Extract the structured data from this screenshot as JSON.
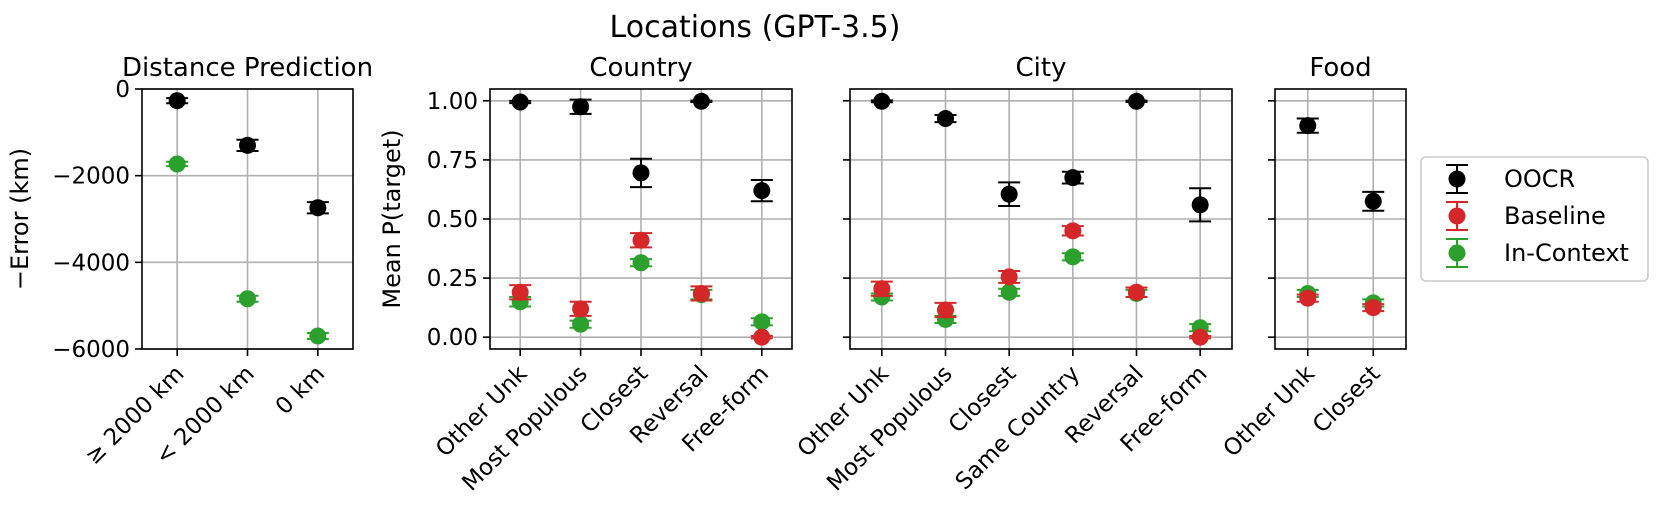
{
  "title": "Locations (GPT-3.5)",
  "series_colors": {
    "OOCR": "#000000",
    "Baseline": "#d62728",
    "In-Context": "#2ca02c"
  },
  "legend": [
    "OOCR",
    "Baseline",
    "In-Context"
  ],
  "chart_data": [
    {
      "type": "scatter",
      "title": "Distance Prediction",
      "ylabel": "−Error (km)",
      "ylim": [
        -6000,
        0
      ],
      "yticks": [
        0,
        -2000,
        -4000,
        -6000
      ],
      "ytick_labels": [
        "0",
        "−2000",
        "−4000",
        "−6000"
      ],
      "categories": [
        "≥ 2000 km",
        "< 2000 km",
        "0 km"
      ],
      "series": [
        {
          "name": "OOCR",
          "values": [
            -270,
            -1300,
            -2740
          ],
          "errors": [
            60,
            130,
            130
          ]
        },
        {
          "name": "In-Context",
          "values": [
            -1730,
            -4840,
            -5700
          ],
          "errors": [
            50,
            70,
            70
          ]
        }
      ]
    },
    {
      "type": "scatter",
      "title": "Country",
      "ylabel": "Mean P(target)",
      "ylim": [
        -0.05,
        1.05
      ],
      "yticks": [
        0,
        0.25,
        0.5,
        0.75,
        1.0
      ],
      "ytick_labels": [
        "0.00",
        "0.25",
        "0.50",
        "0.75",
        "1.00"
      ],
      "categories": [
        "Other Unk",
        "Most Populous",
        "Closest",
        "Reversal",
        "Free-form"
      ],
      "series": [
        {
          "name": "OOCR",
          "values": [
            0.995,
            0.975,
            0.695,
            0.998,
            0.62
          ],
          "errors": [
            0.005,
            0.03,
            0.06,
            0.003,
            0.045
          ]
        },
        {
          "name": "Baseline",
          "values": [
            0.19,
            0.12,
            0.41,
            0.185,
            0.0
          ],
          "errors": [
            0.03,
            0.03,
            0.03,
            0.03,
            0.005
          ]
        },
        {
          "name": "In-Context",
          "values": [
            0.15,
            0.055,
            0.315,
            0.18,
            0.065
          ],
          "errors": [
            0.02,
            0.015,
            0.015,
            0.02,
            0.015
          ]
        }
      ]
    },
    {
      "type": "scatter",
      "title": "City",
      "ylim": [
        -0.05,
        1.05
      ],
      "yticks": [
        0,
        0.25,
        0.5,
        0.75,
        1.0
      ],
      "categories": [
        "Other Unk",
        "Most Populous",
        "Closest",
        "Same Country",
        "Reversal",
        "Free-form"
      ],
      "series": [
        {
          "name": "OOCR",
          "values": [
            0.998,
            0.925,
            0.605,
            0.675,
            0.998,
            0.56
          ],
          "errors": [
            0.004,
            0.015,
            0.05,
            0.025,
            0.003,
            0.07
          ]
        },
        {
          "name": "Baseline",
          "values": [
            0.205,
            0.115,
            0.255,
            0.45,
            0.19,
            0.0
          ],
          "errors": [
            0.03,
            0.03,
            0.025,
            0.02,
            0.02,
            0.005
          ]
        },
        {
          "name": "In-Context",
          "values": [
            0.17,
            0.075,
            0.19,
            0.34,
            0.185,
            0.04
          ],
          "errors": [
            0.015,
            0.015,
            0.015,
            0.015,
            0.015,
            0.015
          ]
        }
      ]
    },
    {
      "type": "scatter",
      "title": "Food",
      "ylim": [
        -0.05,
        1.05
      ],
      "yticks": [
        0,
        0.25,
        0.5,
        0.75,
        1.0
      ],
      "categories": [
        "Other Unk",
        "Closest"
      ],
      "series": [
        {
          "name": "OOCR",
          "values": [
            0.895,
            0.575
          ],
          "errors": [
            0.03,
            0.04
          ]
        },
        {
          "name": "Baseline",
          "values": [
            0.165,
            0.125
          ],
          "errors": [
            0.015,
            0.015
          ]
        },
        {
          "name": "In-Context",
          "values": [
            0.185,
            0.145
          ],
          "errors": [
            0.015,
            0.015
          ]
        }
      ]
    }
  ]
}
